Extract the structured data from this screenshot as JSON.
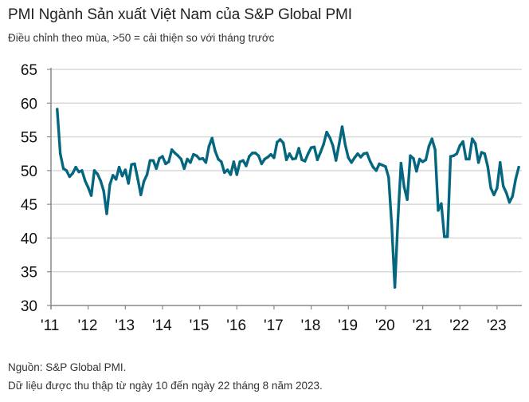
{
  "header": {
    "title": "PMI Ngành Sản xuất Việt Nam của S&P Global PMI",
    "subtitle": "Điều chỉnh theo mùa, >50 = cải thiện so với tháng trước"
  },
  "footer": {
    "source": "Nguồn: S&P Global PMI.",
    "note": "Dữ liệu được thu thập từ ngày 10 đến ngày 22 tháng 8 năm 2023."
  },
  "colors": {
    "line": "#05677f",
    "grid": "#d9d9d9",
    "axis": "#888888"
  },
  "chart_data": {
    "type": "line",
    "title": "PMI Ngành Sản xuất Việt Nam của S&P Global PMI",
    "subtitle": "Điều chỉnh theo mùa, >50 = cải thiện so với tháng trước",
    "xlabel": "",
    "ylabel": "",
    "ylim": [
      30,
      65
    ],
    "yticks": [
      30,
      35,
      40,
      45,
      50,
      55,
      60,
      65
    ],
    "ytick_labels": [
      "30",
      "35",
      "40",
      "45",
      "50",
      "55",
      "60",
      "65"
    ],
    "xtick_labels": [
      "'11",
      "'12",
      "'13",
      "'14",
      "'15",
      "'16",
      "'17",
      "'18",
      "'19",
      "'20",
      "'21",
      "'22",
      "'23"
    ],
    "xrange": [
      "2011-01",
      "2023-09"
    ],
    "grid": true,
    "legend": "none",
    "series": [
      {
        "name": "PMI",
        "start": "2011-03",
        "frequency": "monthly",
        "values": [
          59.1,
          52.5,
          50.3,
          50.0,
          49.1,
          49.6,
          50.5,
          49.8,
          50.0,
          48.5,
          47.5,
          46.3,
          50.0,
          49.5,
          48.5,
          47.0,
          43.6,
          47.9,
          49.3,
          48.7,
          50.5,
          49.2,
          50.1,
          48.1,
          50.9,
          51.0,
          48.8,
          46.4,
          48.4,
          49.4,
          51.5,
          51.5,
          50.3,
          51.8,
          52.1,
          51.0,
          51.3,
          53.1,
          52.6,
          52.2,
          51.7,
          50.3,
          51.7,
          51.2,
          52.4,
          52.2,
          51.7,
          51.8,
          51.2,
          53.6,
          54.8,
          52.9,
          51.7,
          51.3,
          49.7,
          50.1,
          49.4,
          51.3,
          49.4,
          51.3,
          51.5,
          50.7,
          52.1,
          52.6,
          52.6,
          52.2,
          51.0,
          51.7,
          52.0,
          52.4,
          51.9,
          54.2,
          54.6,
          54.1,
          51.6,
          52.5,
          51.7,
          51.8,
          53.3,
          51.6,
          51.4,
          52.5,
          53.4,
          53.5,
          51.6,
          52.7,
          53.9,
          55.7,
          54.9,
          53.7,
          51.5,
          53.9,
          56.5,
          53.8,
          51.9,
          51.2,
          51.9,
          52.5,
          52.0,
          52.5,
          52.6,
          51.4,
          50.5,
          50.0,
          51.0,
          50.8,
          50.6,
          49.0,
          41.9,
          32.7,
          42.7,
          51.1,
          47.6,
          45.7,
          52.2,
          51.8,
          49.9,
          51.7,
          51.3,
          51.6,
          53.6,
          54.7,
          53.1,
          44.1,
          45.1,
          40.2,
          40.2,
          52.1,
          52.2,
          52.5,
          53.7,
          54.3,
          51.7,
          51.7,
          54.7,
          54.0,
          51.2,
          52.7,
          52.5,
          50.6,
          47.4,
          46.4,
          47.4,
          51.2,
          47.7,
          46.7,
          45.3,
          46.2,
          48.7,
          50.5
        ]
      }
    ]
  }
}
